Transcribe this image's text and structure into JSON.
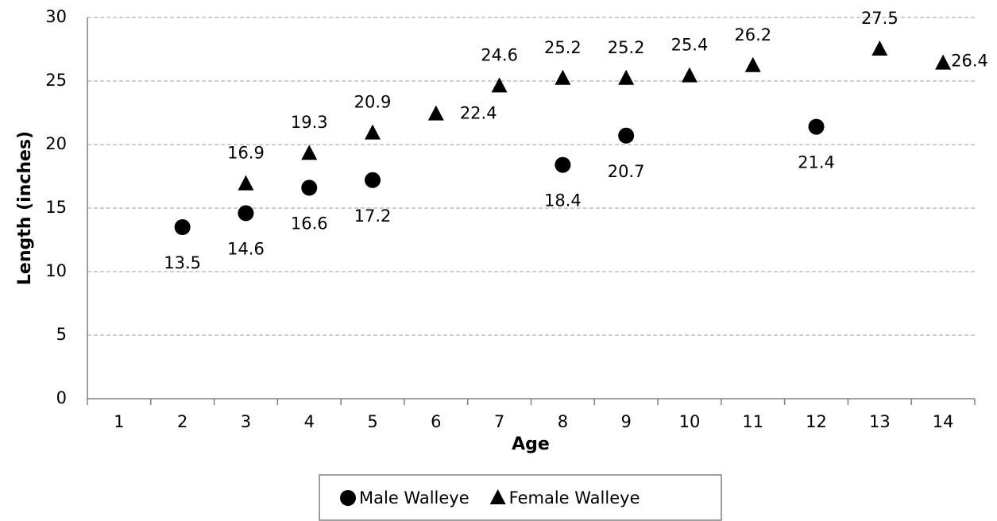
{
  "chart_data": {
    "type": "scatter",
    "x_label": "Age",
    "y_label": "Length (inches)",
    "categories": [
      "1",
      "2",
      "3",
      "4",
      "5",
      "6",
      "7",
      "8",
      "9",
      "10",
      "11",
      "12",
      "13",
      "14"
    ],
    "series": [
      {
        "name": "Male Walleye",
        "color": "#000000",
        "marker": "circle",
        "values": [
          null,
          13.5,
          14.6,
          16.6,
          17.2,
          null,
          null,
          18.4,
          20.7,
          null,
          null,
          21.4,
          null,
          null
        ]
      },
      {
        "name": "Female Walleye",
        "color": "#000000",
        "marker": "triangle",
        "values": [
          null,
          null,
          16.9,
          19.3,
          20.9,
          22.4,
          24.6,
          25.2,
          25.2,
          25.4,
          26.2,
          null,
          27.5,
          26.4
        ]
      }
    ],
    "ylim": [
      0,
      30
    ],
    "yticks": [
      0,
      5,
      10,
      15,
      20,
      25,
      30
    ],
    "grid": true,
    "legend": "bottom"
  }
}
